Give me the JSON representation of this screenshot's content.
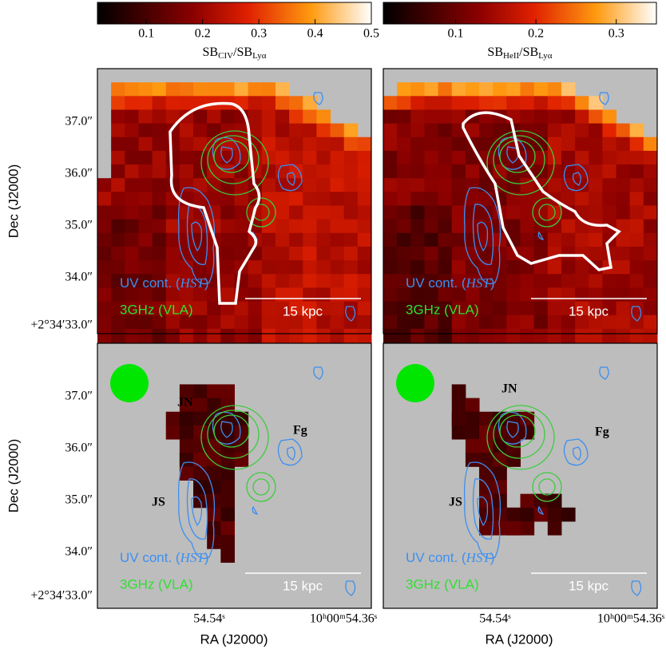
{
  "colorbars": [
    {
      "label": [
        "SB",
        "CIV",
        "/SB",
        "Lyα"
      ],
      "lim": [
        0.013,
        0.5
      ],
      "ticks": [
        0.1,
        0.2,
        0.3,
        0.4,
        0.5
      ]
    },
    {
      "label": [
        "SB",
        "HeII",
        "/SB",
        "Lyα"
      ],
      "lim": [
        0.01,
        0.35
      ],
      "ticks": [
        0.1,
        0.2,
        0.3
      ]
    }
  ],
  "y_axis": {
    "label": "Dec (J2000)",
    "ticks": [
      "37.0″",
      "36.0″",
      "35.0″",
      "34.0″",
      "+2°34′33.0″"
    ]
  },
  "x_axis": {
    "label": "RA (J2000)",
    "ticks": [
      "54.54ˢ",
      "10ʰ00ᵐ54.36ˢ"
    ]
  },
  "panels": [
    {
      "legend_uv": [
        "UV cont. (",
        "HST",
        ")"
      ],
      "legend_radio": "3GHz (VLA)",
      "scale_bar": "15 kpc"
    },
    {
      "legend_uv": [
        "UV cont. (",
        "HST",
        ")"
      ],
      "legend_radio": "3GHz (VLA)",
      "scale_bar": "15 kpc"
    },
    {
      "legend_uv": [
        "UV cont. (",
        "HST",
        ")"
      ],
      "legend_radio": "3GHz (VLA)",
      "scale_bar": "15 kpc",
      "sources": [
        "JN",
        "Fg",
        "JS"
      ]
    },
    {
      "legend_uv": [
        "UV cont. (",
        "HST",
        ")"
      ],
      "legend_radio": "3GHz (VLA)",
      "scale_bar": "15 kpc",
      "sources": [
        "JN",
        "Fg",
        "JS"
      ]
    }
  ]
}
